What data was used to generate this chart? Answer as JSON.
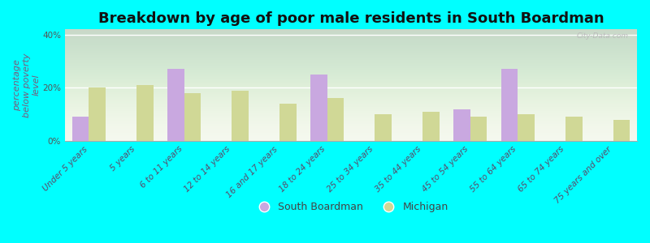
{
  "title": "Breakdown by age of poor male residents in South Boardman",
  "ylabel": "percentage\nbelow poverty\nlevel",
  "categories": [
    "Under 5 years",
    "5 years",
    "6 to 11 years",
    "12 to 14 years",
    "16 and 17 years",
    "18 to 24 years",
    "25 to 34 years",
    "35 to 44 years",
    "45 to 54 years",
    "55 to 64 years",
    "65 to 74 years",
    "75 years and over"
  ],
  "south_boardman": [
    9,
    0,
    27,
    0,
    0,
    25,
    0,
    0,
    12,
    27,
    0,
    0
  ],
  "michigan": [
    20,
    21,
    18,
    19,
    14,
    16,
    10,
    11,
    9,
    10,
    9,
    8
  ],
  "south_boardman_color": "#c9a8e0",
  "michigan_color": "#d0d896",
  "background_color": "#00ffff",
  "ylim": [
    0,
    42
  ],
  "yticks": [
    0,
    20,
    40
  ],
  "ytick_labels": [
    "0%",
    "20%",
    "40%"
  ],
  "bar_width": 0.35,
  "title_fontsize": 13,
  "axis_label_fontsize": 8,
  "tick_fontsize": 7.5,
  "legend_fontsize": 9
}
